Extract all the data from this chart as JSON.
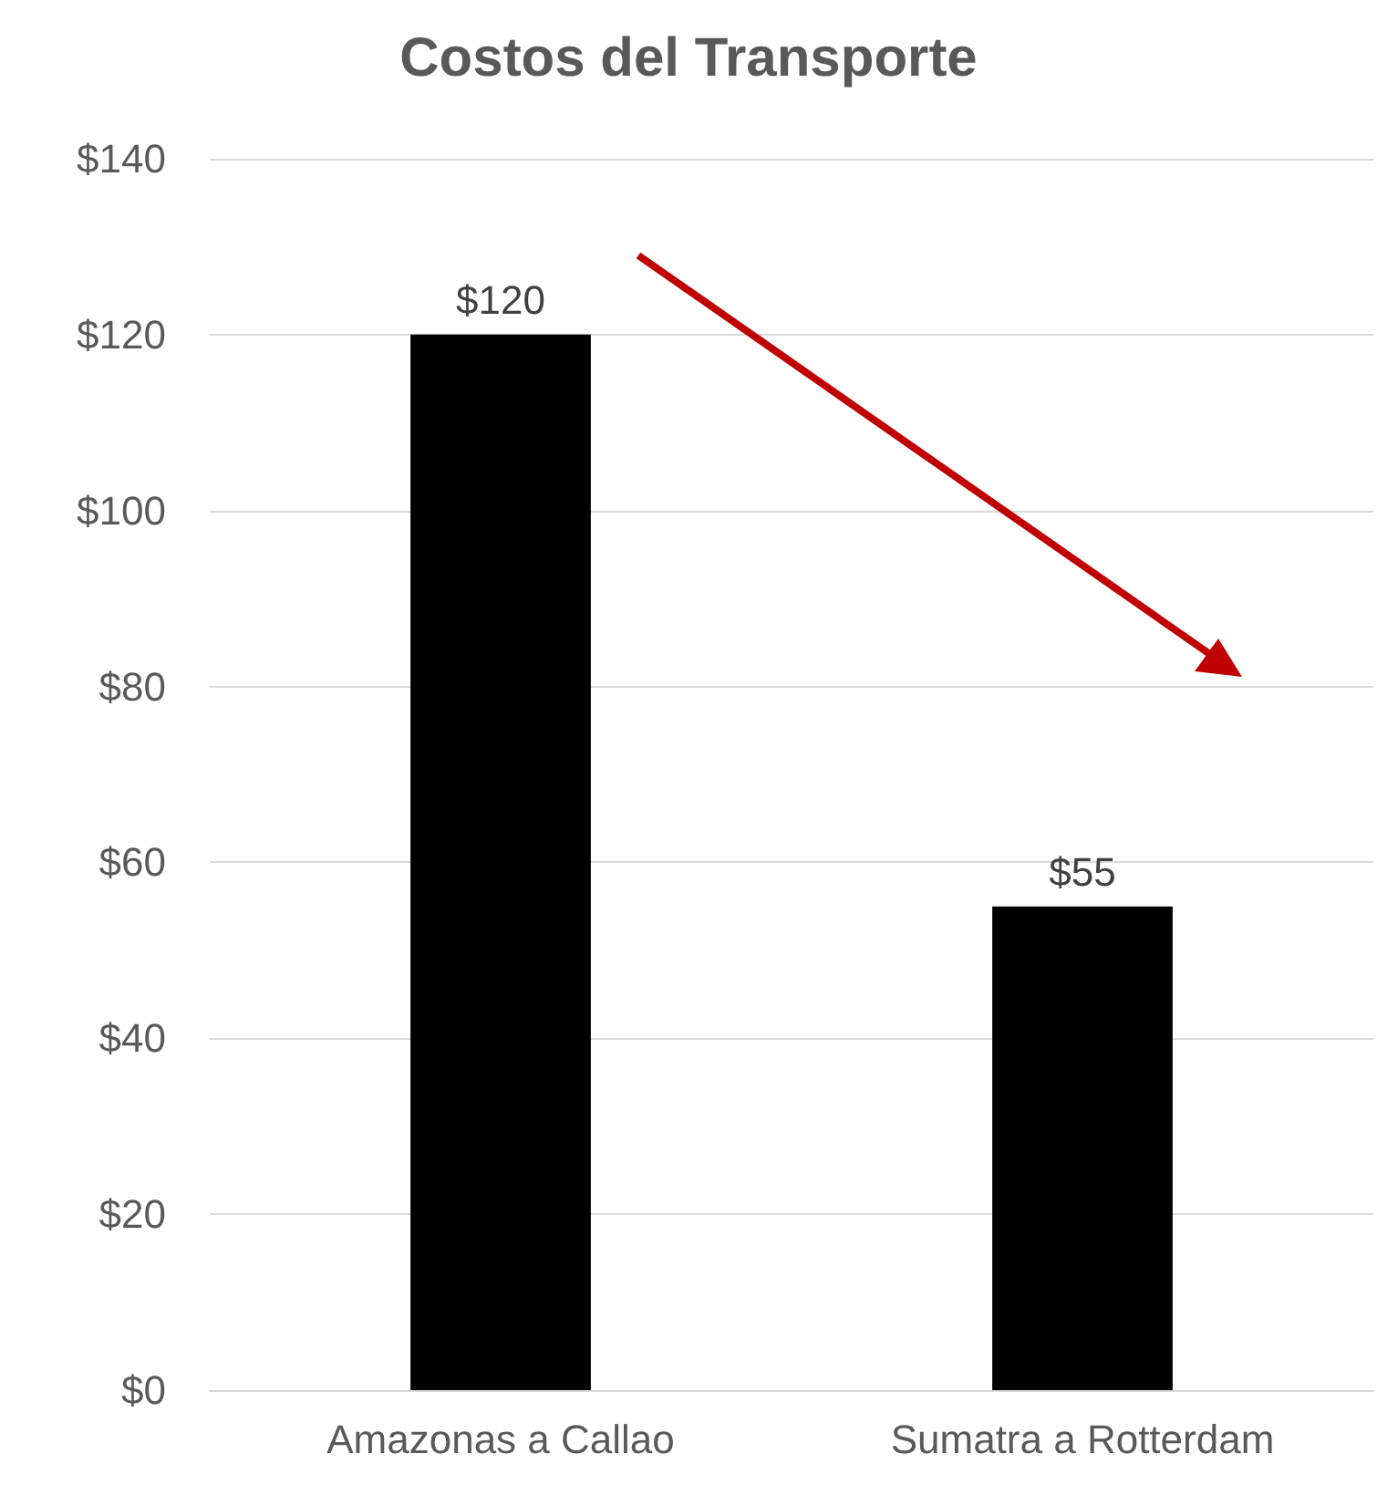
{
  "chart_data": {
    "type": "bar",
    "title": "Costos del Transporte",
    "categories": [
      "Amazonas a Callao",
      "Sumatra a Rotterdam"
    ],
    "values": [
      120,
      55
    ],
    "color": "#000000",
    "value_labels": [
      "$120",
      "$55"
    ],
    "ylim": [
      0,
      140
    ],
    "yticks": [
      {
        "value": 0,
        "label": "$0"
      },
      {
        "value": 20,
        "label": "$20"
      },
      {
        "value": 40,
        "label": "$40"
      },
      {
        "value": 60,
        "label": "$60"
      },
      {
        "value": 80,
        "label": "$80"
      },
      {
        "value": 100,
        "label": "$100"
      },
      {
        "value": 120,
        "label": "$120"
      },
      {
        "value": 140,
        "label": "$140"
      }
    ],
    "grid": "y"
  }
}
